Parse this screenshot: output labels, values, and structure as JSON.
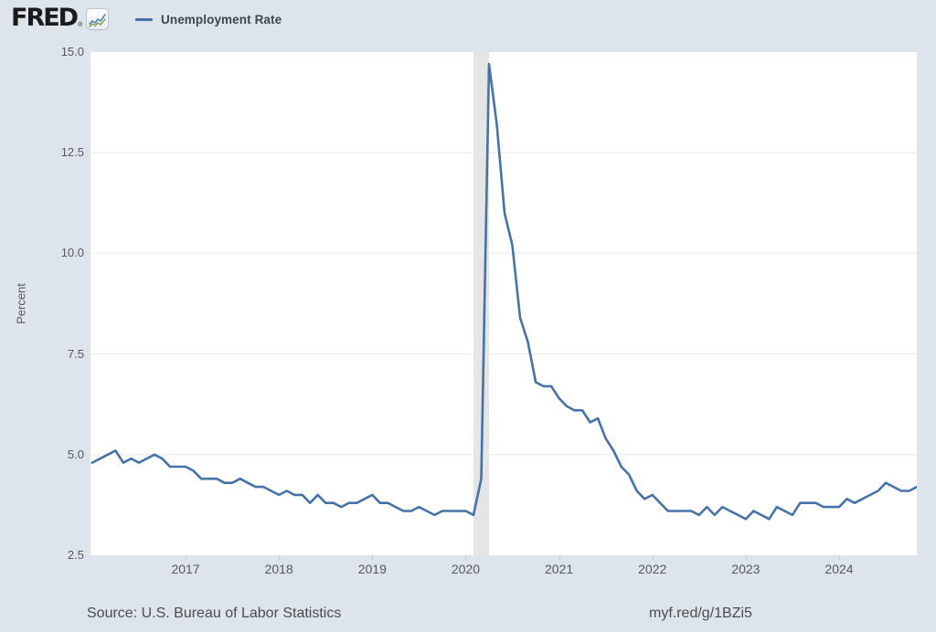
{
  "header": {
    "logo_text": "FRED",
    "logo_registered": "®",
    "legend": {
      "marker_color": "#4572a7",
      "label": "Unemployment Rate"
    }
  },
  "chart_data": {
    "type": "line",
    "series_name": "Unemployment Rate",
    "ylabel": "Percent",
    "frequency": "monthly",
    "start_year": 2016,
    "start_month": 1,
    "end_year": 2024,
    "end_month": 11,
    "ylim": [
      2.5,
      15.0
    ],
    "y_tick_values": [
      15.0,
      12.5,
      10.0,
      7.5,
      5.0,
      2.5
    ],
    "y_tick_labels": [
      "15.0",
      "12.5",
      "10.0",
      "7.5",
      "5.0",
      "2.5"
    ],
    "y_gridlines": [
      12.5,
      10.0,
      7.5,
      5.0
    ],
    "x_tick_labels": [
      "2017",
      "2018",
      "2019",
      "2020",
      "2021",
      "2022",
      "2023",
      "2024"
    ],
    "grid": true,
    "legend_position": "top-left",
    "line_color": "#4572a7",
    "grid_color": "#ebebeb",
    "recession_color": "#e5e5e5",
    "recession_band": {
      "from": "2020-02",
      "to": "2020-04"
    },
    "values": [
      4.8,
      4.9,
      5.0,
      5.1,
      4.8,
      4.9,
      4.8,
      4.9,
      5.0,
      4.9,
      4.7,
      4.7,
      4.7,
      4.6,
      4.4,
      4.4,
      4.4,
      4.3,
      4.3,
      4.4,
      4.3,
      4.2,
      4.2,
      4.1,
      4.0,
      4.1,
      4.0,
      4.0,
      3.8,
      4.0,
      3.8,
      3.8,
      3.7,
      3.8,
      3.8,
      3.9,
      4.0,
      3.8,
      3.8,
      3.7,
      3.6,
      3.6,
      3.7,
      3.6,
      3.5,
      3.6,
      3.6,
      3.6,
      3.6,
      3.5,
      4.4,
      14.7,
      13.2,
      11.0,
      10.2,
      8.4,
      7.8,
      6.8,
      6.7,
      6.7,
      6.4,
      6.2,
      6.1,
      6.1,
      5.8,
      5.9,
      5.4,
      5.1,
      4.7,
      4.5,
      4.1,
      3.9,
      4.0,
      3.8,
      3.6,
      3.6,
      3.6,
      3.6,
      3.5,
      3.7,
      3.5,
      3.7,
      3.6,
      3.5,
      3.4,
      3.6,
      3.5,
      3.4,
      3.7,
      3.6,
      3.5,
      3.8,
      3.8,
      3.8,
      3.7,
      3.7,
      3.7,
      3.9,
      3.8,
      3.9,
      4.0,
      4.1,
      4.3,
      4.2,
      4.1,
      4.1,
      4.2
    ]
  },
  "footer": {
    "source": "Source: U.S. Bureau of Labor Statistics",
    "permalink": "myf.red/g/1BZi5"
  }
}
